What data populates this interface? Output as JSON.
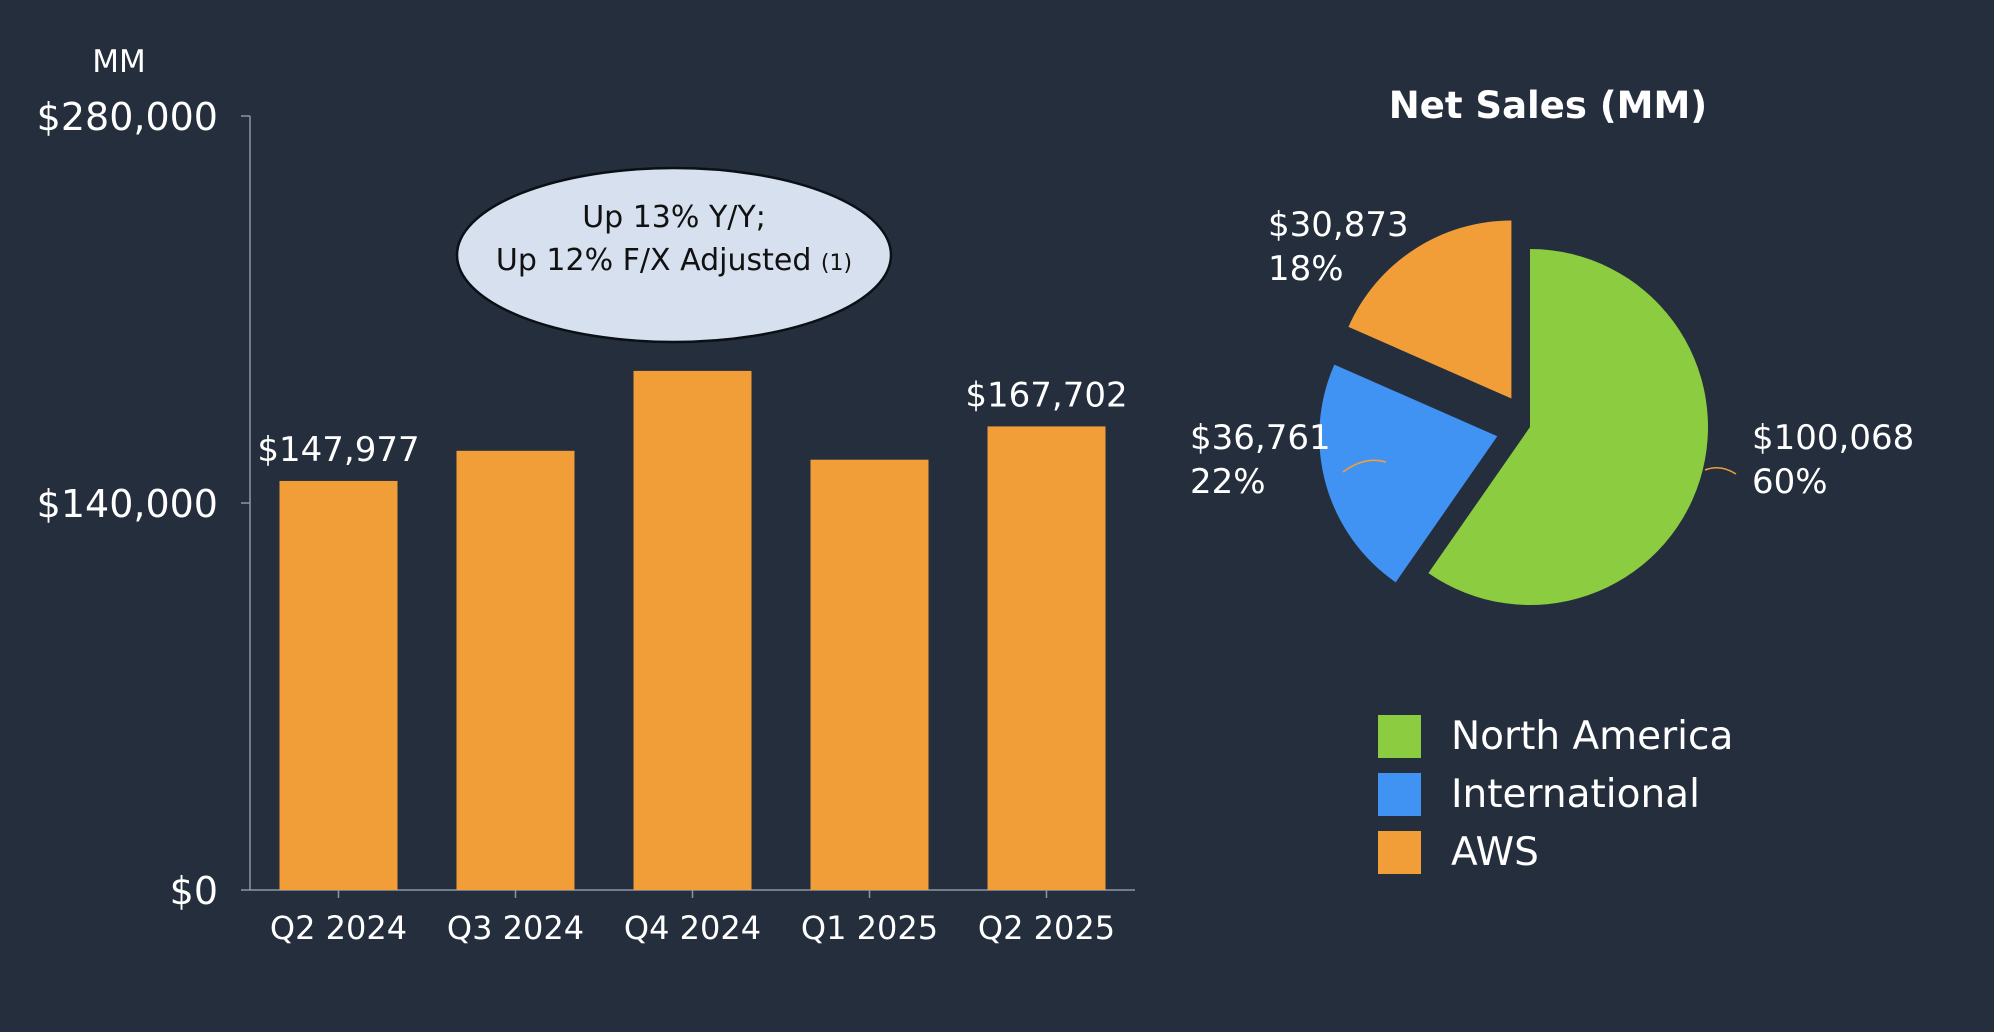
{
  "chart_data": [
    {
      "type": "bar",
      "unit_label": "MM",
      "categories": [
        "Q2 2024",
        "Q3 2024",
        "Q4 2024",
        "Q1 2025",
        "Q2 2025"
      ],
      "values": [
        147977,
        158877,
        187792,
        155667,
        167702
      ],
      "bar_color": "#f19e38",
      "y_ticks": [
        "$0",
        "$140,000",
        "$280,000"
      ],
      "ylim": [
        0,
        280000
      ],
      "data_labels": [
        {
          "category": "Q2 2024",
          "text": "$147,977"
        },
        {
          "category": "Q2 2025",
          "text": "$167,702"
        }
      ],
      "annotation": {
        "line1": "Up 13% Y/Y;",
        "line2": "Up 12% F/X Adjusted",
        "footnote": "(1)"
      },
      "grid": false
    },
    {
      "type": "pie",
      "title": "Net Sales (MM)",
      "slices": [
        {
          "name": "North America",
          "value": 100068,
          "label": "$100,068",
          "percent": "60%",
          "color": "#8bcc41"
        },
        {
          "name": "International",
          "value": 36761,
          "label": "$36,761",
          "percent": "22%",
          "color": "#4193f3"
        },
        {
          "name": "AWS",
          "value": 30873,
          "label": "$30,873",
          "percent": "18%",
          "color": "#f19e38"
        }
      ],
      "legend_position": "bottom-right"
    }
  ]
}
